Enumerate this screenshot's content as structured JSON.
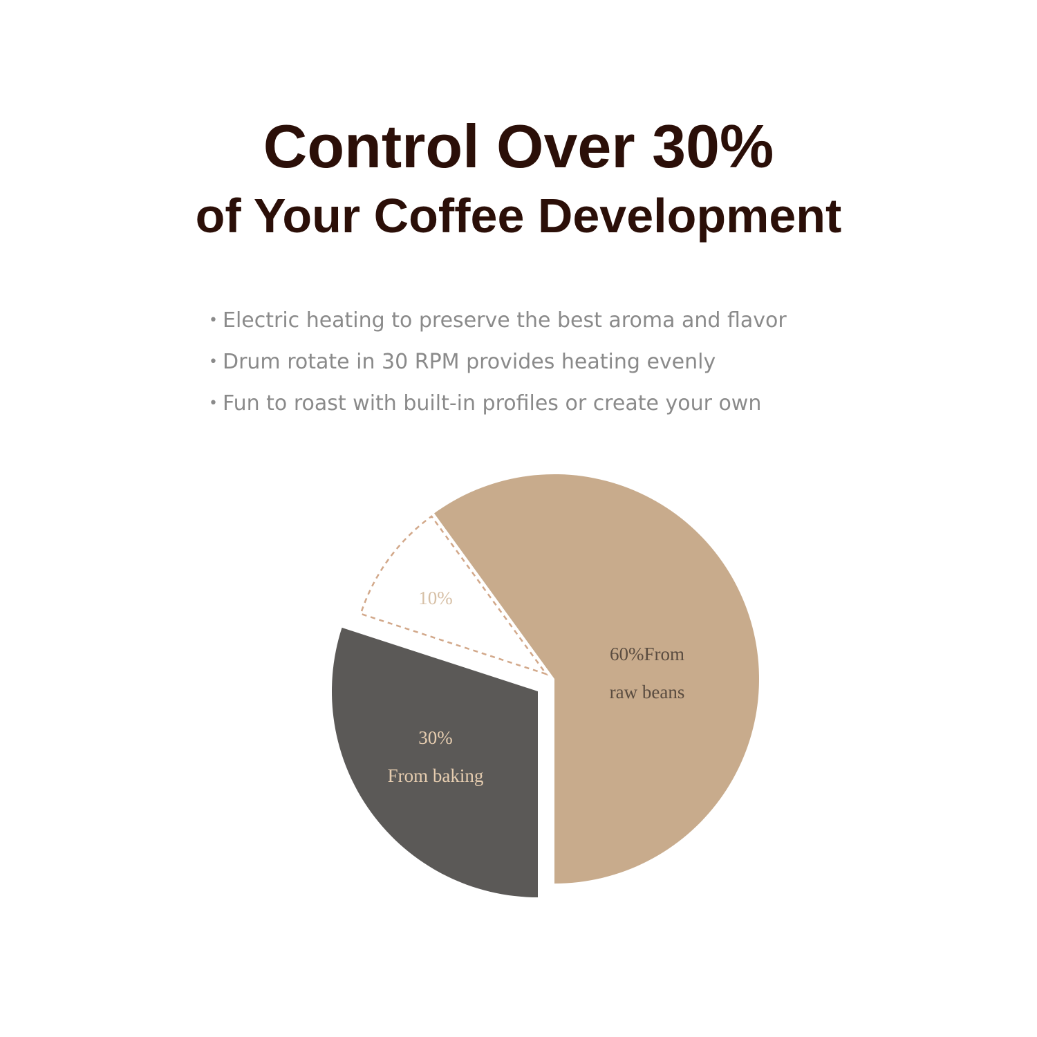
{
  "header": {
    "title": "Control Over 30%",
    "subtitle": "of Your Coffee Development"
  },
  "bullets": [
    "Electric heating to preserve the best aroma and flavor",
    "Drum rotate in 30 RPM provides heating evenly",
    "Fun to roast with built-in profiles or create your own"
  ],
  "chart_data": {
    "type": "pie",
    "slices": [
      {
        "label_lines": [
          "60%From",
          "raw beans"
        ],
        "value": 60,
        "color": "#c8ab8c",
        "label_color": "#5a4c40",
        "style": "solid"
      },
      {
        "label_lines": [
          "30%",
          "From baking"
        ],
        "value": 30,
        "color": "#5b5957",
        "label_color": "#e6cdb0",
        "style": "solid, exploded"
      },
      {
        "label_lines": [
          "10%"
        ],
        "value": 10,
        "color": "#ffffff",
        "label_color": "#d6bfa5",
        "style": "dashed outline"
      }
    ]
  }
}
